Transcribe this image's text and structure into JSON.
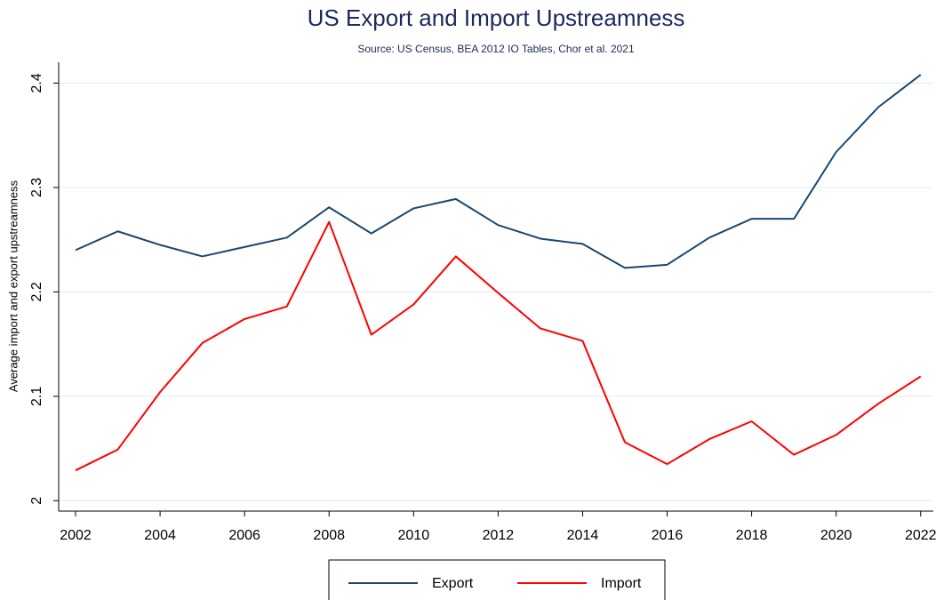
{
  "chart_data": {
    "type": "line",
    "title": "US Export and Import Upstreamness",
    "subtitle": "Source: US Census, BEA 2012 IO Tables, Chor et al. 2021",
    "y_label": "Average import and export upstreamness",
    "x": [
      2002,
      2003,
      2004,
      2005,
      2006,
      2007,
      2008,
      2009,
      2010,
      2011,
      2012,
      2013,
      2014,
      2015,
      2016,
      2017,
      2018,
      2019,
      2020,
      2021,
      2022
    ],
    "series": [
      {
        "name": "Export",
        "color": "#1a476f",
        "values": [
          2.24,
          2.258,
          2.245,
          2.234,
          2.243,
          2.252,
          2.281,
          2.256,
          2.28,
          2.289,
          2.264,
          2.251,
          2.246,
          2.223,
          2.226,
          2.252,
          2.27,
          2.27,
          2.334,
          2.377,
          2.408
        ]
      },
      {
        "name": "Import",
        "color": "#ff0000",
        "values": [
          2.029,
          2.049,
          2.104,
          2.151,
          2.174,
          2.186,
          2.267,
          2.159,
          2.188,
          2.234,
          2.199,
          2.165,
          2.153,
          2.056,
          2.035,
          2.059,
          2.076,
          2.044,
          2.063,
          2.093,
          2.119
        ]
      }
    ],
    "xlim": [
      2001.6,
      2022.3
    ],
    "xticks": [
      2002,
      2004,
      2006,
      2008,
      2010,
      2012,
      2014,
      2016,
      2018,
      2020,
      2022
    ],
    "ylim": [
      1.99,
      2.42
    ],
    "yticks": [
      2,
      2.1,
      2.2,
      2.3,
      2.4
    ],
    "grid": true,
    "legend": "bottom"
  }
}
